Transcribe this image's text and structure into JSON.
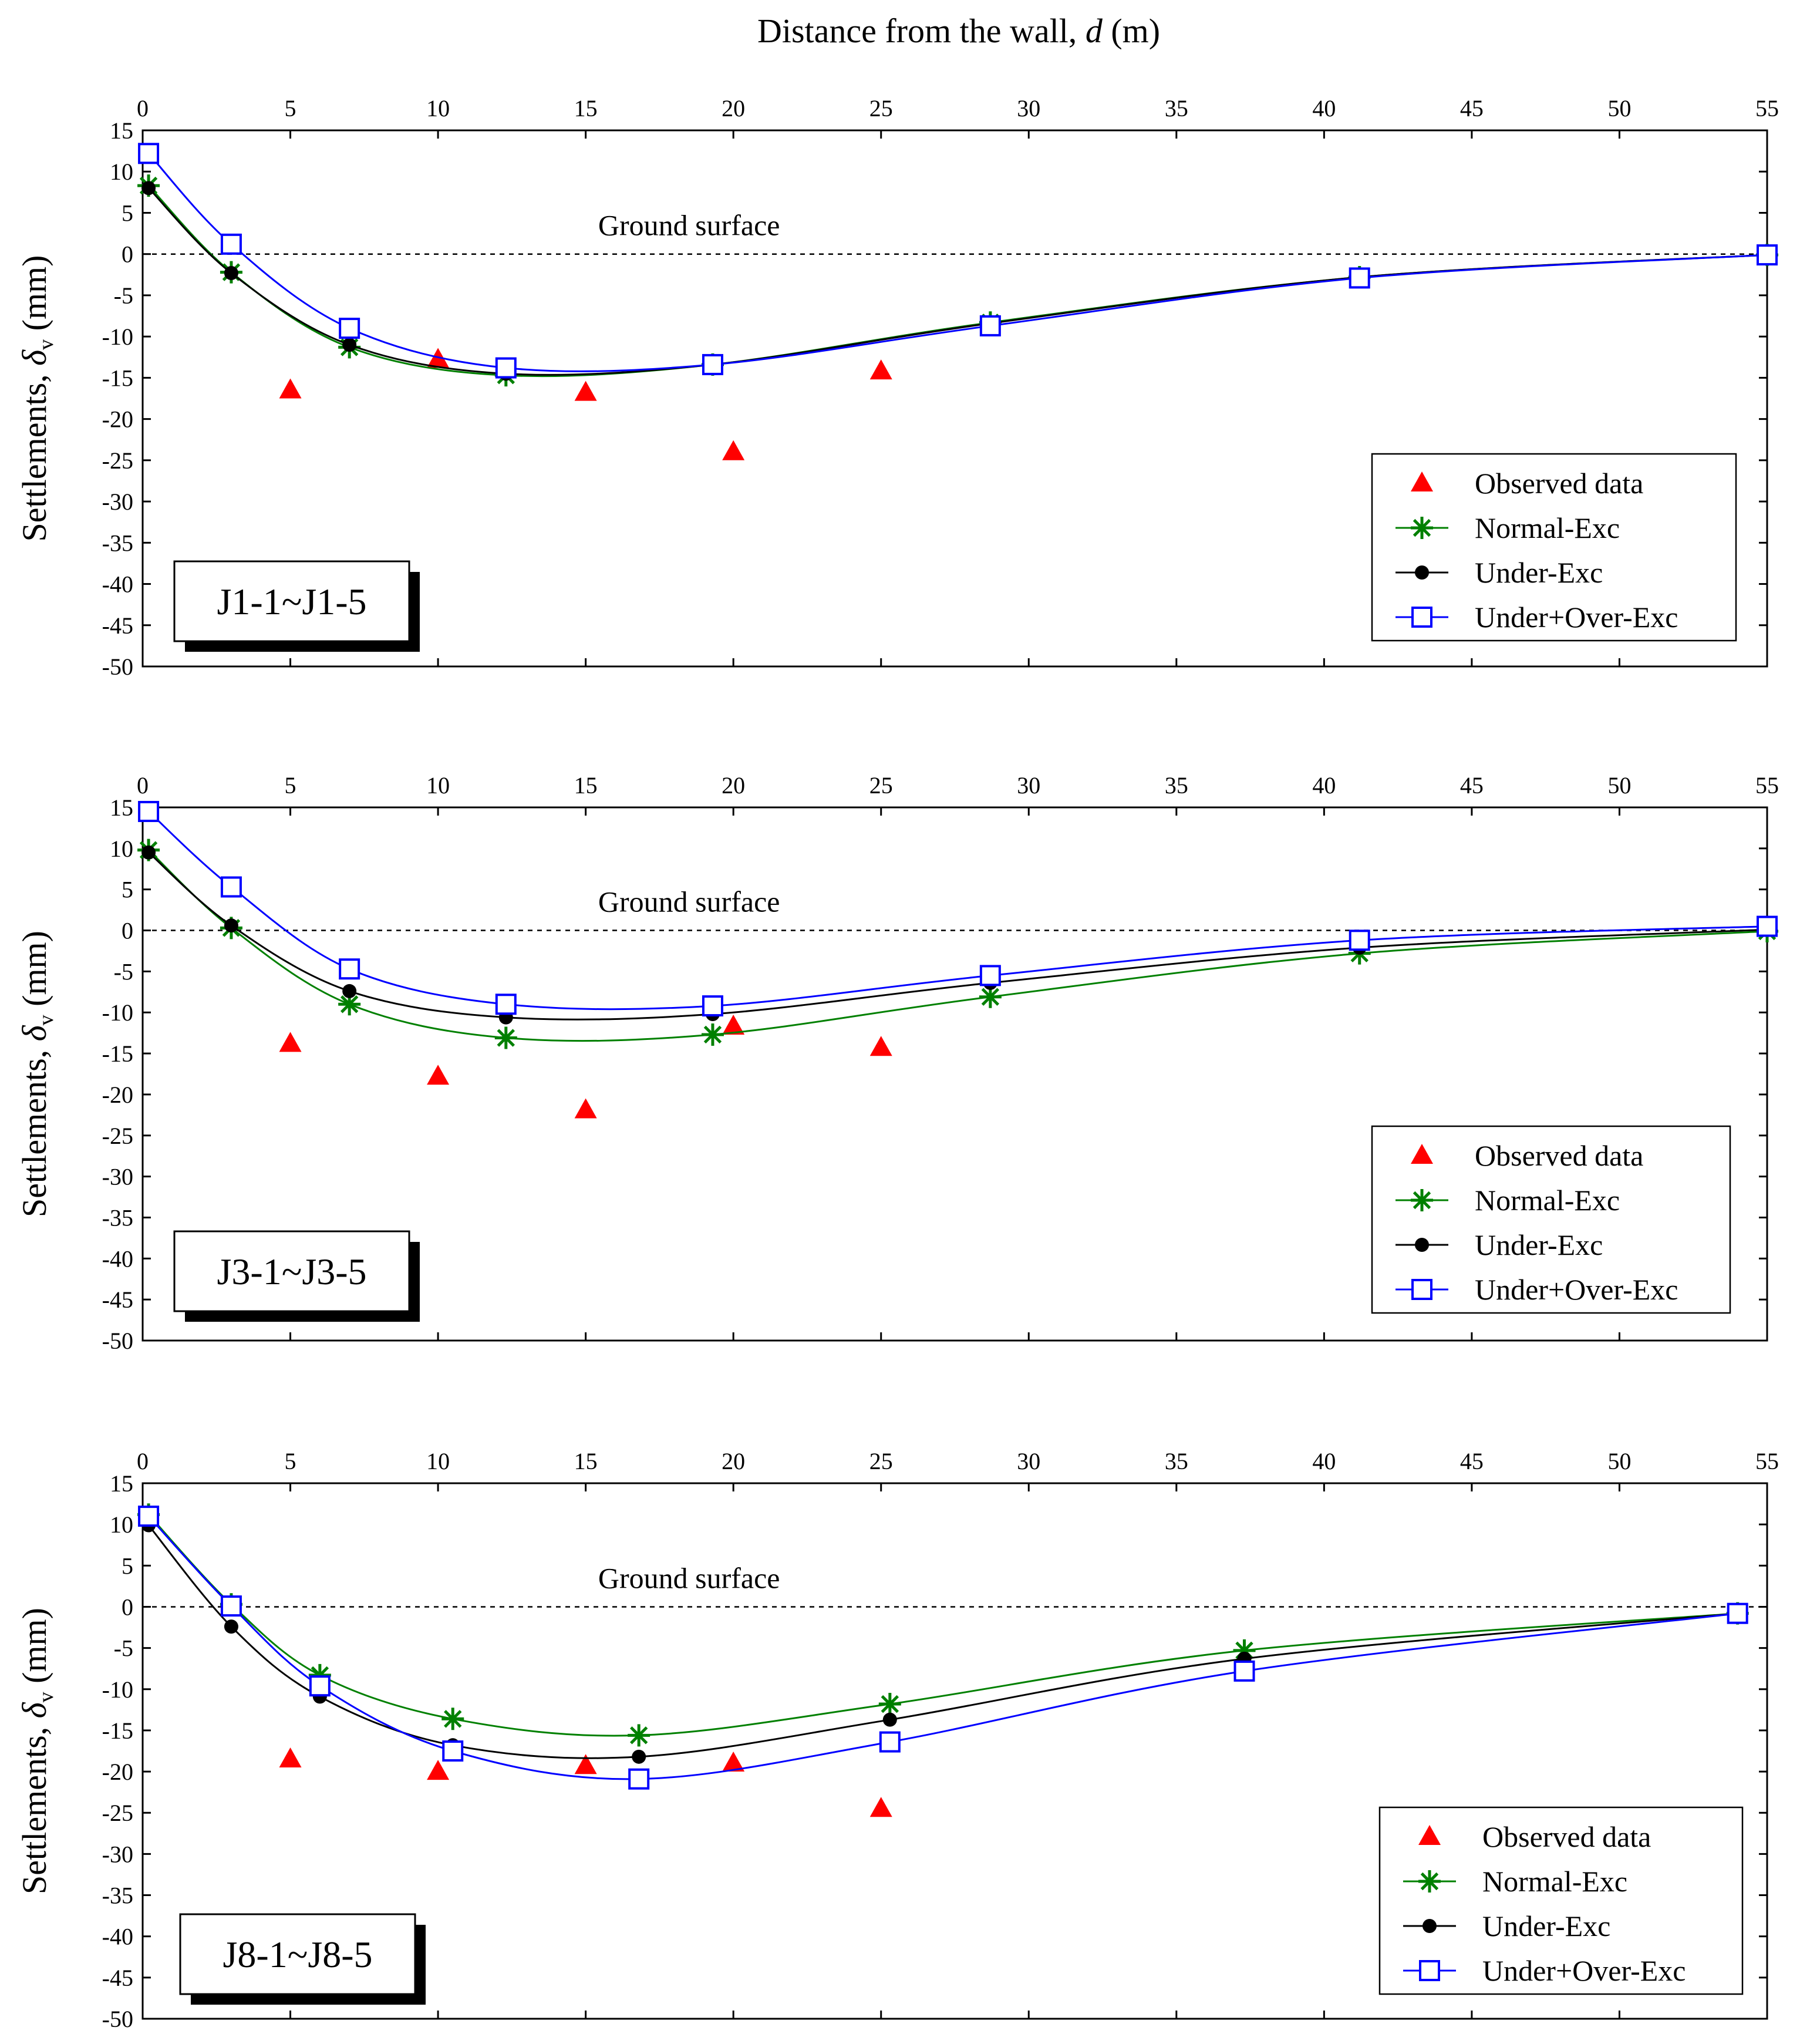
{
  "figure": {
    "xlabel_prefix": "Distance from the wall, ",
    "xlabel_symbol": "d",
    "xlabel_suffix": " (m)",
    "ylabel_prefix": "Settlements, ",
    "ylabel_symbol": "δ",
    "ylabel_subscript": "v",
    "ylabel_suffix": " (mm)",
    "ground_label": "Ground surface"
  },
  "colors": {
    "observed": "#ff0000",
    "normal": "#008000",
    "under": "#000000",
    "over": "#0000ff"
  },
  "chart_data": [
    {
      "type": "line",
      "panel_label": "J1-1~J1-5",
      "x_ticks": [
        0,
        5,
        10,
        15,
        20,
        25,
        30,
        35,
        40,
        45,
        50,
        55
      ],
      "y_ticks": [
        15,
        10,
        5,
        0,
        -5,
        -10,
        -15,
        -20,
        -25,
        -30,
        -35,
        -40,
        -45,
        -50
      ],
      "xlim": [
        0,
        55
      ],
      "ylim": [
        -50,
        15
      ],
      "legend_position": "lower-right",
      "series": [
        {
          "key": "observed",
          "name": "Observed data",
          "marker": "triangle",
          "x": [
            5,
            10,
            15,
            20,
            25
          ],
          "y": [
            -16.5,
            -12.8,
            -16.8,
            -24,
            -14.2
          ]
        },
        {
          "key": "normal",
          "name": "Normal-Exc",
          "marker": "asterisk",
          "x": [
            0.2,
            3,
            7,
            12.3,
            19.3,
            28.7,
            41.2,
            55
          ],
          "y": [
            8.3,
            -2.2,
            -11.3,
            -14.7,
            -13.4,
            -8.3,
            -2.8,
            -0.1
          ]
        },
        {
          "key": "under",
          "name": "Under-Exc",
          "marker": "dot",
          "x": [
            0.2,
            3,
            7,
            12.3,
            19.3,
            28.7,
            41.2,
            55
          ],
          "y": [
            8,
            -2.3,
            -11,
            -14.5,
            -13.4,
            -8.4,
            -2.8,
            -0.1
          ]
        },
        {
          "key": "over",
          "name": "Under+Over-Exc",
          "marker": "square",
          "x": [
            0.2,
            3,
            7,
            12.3,
            19.3,
            28.7,
            41.2,
            55
          ],
          "y": [
            12.2,
            1.2,
            -9,
            -13.8,
            -13.4,
            -8.7,
            -2.9,
            -0.1
          ]
        }
      ]
    },
    {
      "type": "line",
      "panel_label": "J3-1~J3-5",
      "x_ticks": [
        0,
        5,
        10,
        15,
        20,
        25,
        30,
        35,
        40,
        45,
        50,
        55
      ],
      "y_ticks": [
        15,
        10,
        5,
        0,
        -5,
        -10,
        -15,
        -20,
        -25,
        -30,
        -35,
        -40,
        -45,
        -50
      ],
      "xlim": [
        0,
        55
      ],
      "ylim": [
        -50,
        15
      ],
      "legend_position": "lower-right",
      "series": [
        {
          "key": "observed",
          "name": "Observed data",
          "marker": "triangle",
          "x": [
            5,
            10,
            15,
            20,
            25
          ],
          "y": [
            -13.8,
            -17.8,
            -21.9,
            -11.7,
            -14.3
          ]
        },
        {
          "key": "normal",
          "name": "Normal-Exc",
          "marker": "asterisk",
          "x": [
            0.2,
            3,
            7,
            12.3,
            19.3,
            28.7,
            41.2,
            55
          ],
          "y": [
            9.8,
            0.3,
            -9,
            -13.1,
            -12.7,
            -8.1,
            -2.8,
            -0.1
          ]
        },
        {
          "key": "under",
          "name": "Under-Exc",
          "marker": "dot",
          "x": [
            0.2,
            3,
            7,
            12.3,
            19.3,
            28.7,
            41.2,
            55
          ],
          "y": [
            9.5,
            0.6,
            -7.4,
            -10.6,
            -10.2,
            -6.4,
            -2.1,
            0.1
          ]
        },
        {
          "key": "over",
          "name": "Under+Over-Exc",
          "marker": "square",
          "x": [
            0.2,
            3,
            7,
            12.3,
            19.3,
            28.7,
            41.2,
            55
          ],
          "y": [
            14.5,
            5.3,
            -4.7,
            -9,
            -9.2,
            -5.5,
            -1.2,
            0.5
          ]
        }
      ]
    },
    {
      "type": "line",
      "panel_label": "J8-1~J8-5",
      "x_ticks": [
        0,
        5,
        10,
        15,
        20,
        25,
        30,
        35,
        40,
        45,
        50,
        55
      ],
      "y_ticks": [
        15,
        10,
        5,
        0,
        -5,
        -10,
        -15,
        -20,
        -25,
        -30,
        -35,
        -40,
        -45,
        -50
      ],
      "xlim": [
        0,
        55
      ],
      "ylim": [
        -50,
        15
      ],
      "legend_position": "lower-right",
      "series": [
        {
          "key": "observed",
          "name": "Observed data",
          "marker": "triangle",
          "x": [
            5,
            10,
            15,
            20,
            25
          ],
          "y": [
            -18.5,
            -20,
            -19.3,
            -19,
            -24.5
          ]
        },
        {
          "key": "normal",
          "name": "Normal-Exc",
          "marker": "asterisk",
          "x": [
            0.2,
            3,
            6,
            10.5,
            16.8,
            25.3,
            37.3,
            54
          ],
          "y": [
            11.2,
            0.3,
            -8.3,
            -13.6,
            -15.6,
            -11.8,
            -5.3,
            -0.8
          ]
        },
        {
          "key": "under",
          "name": "Under-Exc",
          "marker": "dot",
          "x": [
            0.2,
            3,
            6,
            10.5,
            16.8,
            25.3,
            37.3,
            54
          ],
          "y": [
            9.9,
            -2.4,
            -10.9,
            -16.8,
            -18.2,
            -13.7,
            -6.3,
            -0.8
          ]
        },
        {
          "key": "over",
          "name": "Under+Over-Exc",
          "marker": "square",
          "x": [
            0.2,
            3,
            6,
            10.5,
            16.8,
            25.3,
            37.3,
            54
          ],
          "y": [
            11,
            0.1,
            -9.6,
            -17.5,
            -20.9,
            -16.4,
            -7.8,
            -0.8
          ]
        }
      ]
    }
  ]
}
